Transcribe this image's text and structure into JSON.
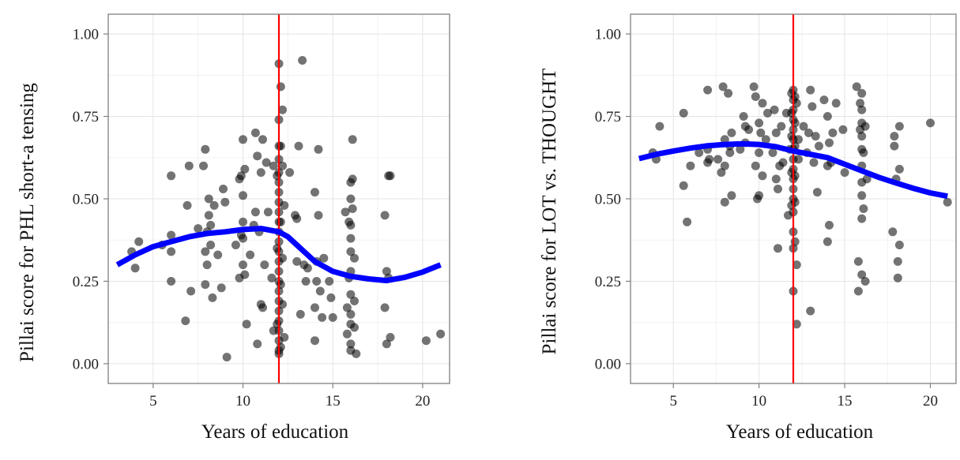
{
  "chart_data": [
    {
      "type": "scatter",
      "xlabel": "Years of education",
      "ylabel": "Pillai score for PHL short-a tensing",
      "xlim": [
        2.5,
        21.5
      ],
      "ylim": [
        -0.06,
        1.06
      ],
      "xticks": [
        "5",
        "10",
        "15",
        "20"
      ],
      "yticks": [
        "0.00",
        "0.25",
        "0.50",
        "0.75",
        "1.00"
      ],
      "grid": true,
      "vline": 12,
      "colors": {
        "points": "#000000",
        "smooth": "#0000ff",
        "vline": "#ff0000"
      },
      "points": [
        [
          3.8,
          0.34
        ],
        [
          4.0,
          0.29
        ],
        [
          4.2,
          0.37
        ],
        [
          5.5,
          0.36
        ],
        [
          6.0,
          0.57
        ],
        [
          6.0,
          0.34
        ],
        [
          6.0,
          0.25
        ],
        [
          6.0,
          0.39
        ],
        [
          6.8,
          0.13
        ],
        [
          6.9,
          0.48
        ],
        [
          7.0,
          0.6
        ],
        [
          7.1,
          0.22
        ],
        [
          7.5,
          0.41
        ],
        [
          7.8,
          0.6
        ],
        [
          7.9,
          0.65
        ],
        [
          7.9,
          0.34
        ],
        [
          7.9,
          0.24
        ],
        [
          8.0,
          0.3
        ],
        [
          8.0,
          0.4
        ],
        [
          8.1,
          0.45
        ],
        [
          8.1,
          0.5
        ],
        [
          8.2,
          0.42
        ],
        [
          8.2,
          0.36
        ],
        [
          8.3,
          0.2
        ],
        [
          8.4,
          0.48
        ],
        [
          8.6,
          0.33
        ],
        [
          8.8,
          0.23
        ],
        [
          8.9,
          0.53
        ],
        [
          9.0,
          0.49
        ],
        [
          9.1,
          0.02
        ],
        [
          9.6,
          0.36
        ],
        [
          9.8,
          0.26
        ],
        [
          9.8,
          0.56
        ],
        [
          9.9,
          0.57
        ],
        [
          9.9,
          0.39
        ],
        [
          10.0,
          0.43
        ],
        [
          10.0,
          0.38
        ],
        [
          10.0,
          0.3
        ],
        [
          10.0,
          0.51
        ],
        [
          10.0,
          0.68
        ],
        [
          10.1,
          0.27
        ],
        [
          10.1,
          0.59
        ],
        [
          10.2,
          0.12
        ],
        [
          10.4,
          0.33
        ],
        [
          10.6,
          0.42
        ],
        [
          10.7,
          0.7
        ],
        [
          10.7,
          0.46
        ],
        [
          10.8,
          0.63
        ],
        [
          10.8,
          0.06
        ],
        [
          10.9,
          0.4
        ],
        [
          11.0,
          0.58
        ],
        [
          11.0,
          0.18
        ],
        [
          11.1,
          0.17
        ],
        [
          11.1,
          0.68
        ],
        [
          11.2,
          0.3
        ],
        [
          11.3,
          0.61
        ],
        [
          11.4,
          0.46
        ],
        [
          11.6,
          0.26
        ],
        [
          11.7,
          0.1
        ],
        [
          11.7,
          0.6
        ],
        [
          12.0,
          0.91
        ],
        [
          12.0,
          0.74
        ],
        [
          12.0,
          0.66
        ],
        [
          12.0,
          0.62
        ],
        [
          12.0,
          0.58
        ],
        [
          12.0,
          0.55
        ],
        [
          12.0,
          0.52
        ],
        [
          12.0,
          0.49
        ],
        [
          12.0,
          0.46
        ],
        [
          12.0,
          0.43
        ],
        [
          12.0,
          0.4
        ],
        [
          12.0,
          0.37
        ],
        [
          12.0,
          0.34
        ],
        [
          12.0,
          0.31
        ],
        [
          12.0,
          0.28
        ],
        [
          12.0,
          0.25
        ],
        [
          12.0,
          0.22
        ],
        [
          12.0,
          0.19
        ],
        [
          12.0,
          0.16
        ],
        [
          12.0,
          0.13
        ],
        [
          12.0,
          0.1
        ],
        [
          12.0,
          0.07
        ],
        [
          12.0,
          0.04
        ],
        [
          12.0,
          0.03
        ],
        [
          11.9,
          0.57
        ],
        [
          11.9,
          0.35
        ],
        [
          11.9,
          0.12
        ],
        [
          12.1,
          0.84
        ],
        [
          12.1,
          0.66
        ],
        [
          12.1,
          0.43
        ],
        [
          12.1,
          0.24
        ],
        [
          12.1,
          0.05
        ],
        [
          12.2,
          0.77
        ],
        [
          12.2,
          0.6
        ],
        [
          12.2,
          0.32
        ],
        [
          12.2,
          0.18
        ],
        [
          12.3,
          0.48
        ],
        [
          12.3,
          0.08
        ],
        [
          12.6,
          0.58
        ],
        [
          12.9,
          0.45
        ],
        [
          13.0,
          0.44
        ],
        [
          13.0,
          0.31
        ],
        [
          13.1,
          0.66
        ],
        [
          13.2,
          0.15
        ],
        [
          13.3,
          0.92
        ],
        [
          13.4,
          0.3
        ],
        [
          13.5,
          0.25
        ],
        [
          13.6,
          0.29
        ],
        [
          14.0,
          0.52
        ],
        [
          14.0,
          0.17
        ],
        [
          14.0,
          0.07
        ],
        [
          14.1,
          0.31
        ],
        [
          14.1,
          0.25
        ],
        [
          14.2,
          0.65
        ],
        [
          14.2,
          0.45
        ],
        [
          14.3,
          0.22
        ],
        [
          14.4,
          0.14
        ],
        [
          14.5,
          0.32
        ],
        [
          14.8,
          0.25
        ],
        [
          14.9,
          0.2
        ],
        [
          15.0,
          0.14
        ],
        [
          15.7,
          0.46
        ],
        [
          15.8,
          0.17
        ],
        [
          15.8,
          0.09
        ],
        [
          15.9,
          0.26
        ],
        [
          15.9,
          0.43
        ],
        [
          16.0,
          0.55
        ],
        [
          16.0,
          0.5
        ],
        [
          16.0,
          0.42
        ],
        [
          16.0,
          0.38
        ],
        [
          16.0,
          0.34
        ],
        [
          16.0,
          0.28
        ],
        [
          16.0,
          0.21
        ],
        [
          16.0,
          0.15
        ],
        [
          16.0,
          0.12
        ],
        [
          16.0,
          0.06
        ],
        [
          16.0,
          0.04
        ],
        [
          16.1,
          0.68
        ],
        [
          16.1,
          0.56
        ],
        [
          16.1,
          0.47
        ],
        [
          16.2,
          0.32
        ],
        [
          16.2,
          0.19
        ],
        [
          16.2,
          0.11
        ],
        [
          16.3,
          0.03
        ],
        [
          17.9,
          0.45
        ],
        [
          17.9,
          0.17
        ],
        [
          18.0,
          0.06
        ],
        [
          18.0,
          0.28
        ],
        [
          18.1,
          0.26
        ],
        [
          18.1,
          0.57
        ],
        [
          18.2,
          0.08
        ],
        [
          18.2,
          0.57
        ],
        [
          20.2,
          0.07
        ],
        [
          21.0,
          0.09
        ]
      ],
      "smooth": [
        [
          3,
          0.3
        ],
        [
          4,
          0.33
        ],
        [
          5,
          0.355
        ],
        [
          6,
          0.37
        ],
        [
          7,
          0.385
        ],
        [
          8,
          0.395
        ],
        [
          9,
          0.4
        ],
        [
          10,
          0.407
        ],
        [
          11,
          0.41
        ],
        [
          12,
          0.4
        ],
        [
          12.5,
          0.385
        ],
        [
          13,
          0.36
        ],
        [
          14,
          0.31
        ],
        [
          15,
          0.28
        ],
        [
          16,
          0.265
        ],
        [
          17,
          0.257
        ],
        [
          18,
          0.252
        ],
        [
          19,
          0.262
        ],
        [
          20,
          0.278
        ],
        [
          21,
          0.3
        ]
      ]
    },
    {
      "type": "scatter",
      "xlabel": "Years of education",
      "ylabel": "Pillai score for LOT vs. THOUGHT",
      "xlim": [
        2.5,
        21.5
      ],
      "ylim": [
        -0.06,
        1.06
      ],
      "xticks": [
        "5",
        "10",
        "15",
        "20"
      ],
      "yticks": [
        "0.00",
        "0.25",
        "0.50",
        "0.75",
        "1.00"
      ],
      "grid": true,
      "vline": 12,
      "colors": {
        "points": "#000000",
        "smooth": "#0000ff",
        "vline": "#ff0000"
      },
      "points": [
        [
          3.8,
          0.64
        ],
        [
          4.0,
          0.62
        ],
        [
          4.2,
          0.72
        ],
        [
          5.6,
          0.76
        ],
        [
          5.6,
          0.54
        ],
        [
          5.8,
          0.43
        ],
        [
          6.0,
          0.6
        ],
        [
          6.5,
          0.64
        ],
        [
          7.0,
          0.61
        ],
        [
          7.0,
          0.65
        ],
        [
          7.0,
          0.83
        ],
        [
          7.1,
          0.62
        ],
        [
          7.6,
          0.62
        ],
        [
          7.8,
          0.58
        ],
        [
          7.9,
          0.84
        ],
        [
          8.0,
          0.49
        ],
        [
          8.0,
          0.68
        ],
        [
          8.0,
          0.6
        ],
        [
          8.2,
          0.82
        ],
        [
          8.3,
          0.64
        ],
        [
          8.3,
          0.66
        ],
        [
          8.4,
          0.7
        ],
        [
          8.4,
          0.51
        ],
        [
          8.9,
          0.65
        ],
        [
          9.1,
          0.75
        ],
        [
          9.2,
          0.72
        ],
        [
          9.2,
          0.67
        ],
        [
          9.4,
          0.71
        ],
        [
          9.7,
          0.84
        ],
        [
          9.8,
          0.81
        ],
        [
          9.8,
          0.6
        ],
        [
          9.9,
          0.5
        ],
        [
          10.0,
          0.51
        ],
        [
          10.0,
          0.64
        ],
        [
          10.0,
          0.73
        ],
        [
          10.1,
          0.7
        ],
        [
          10.2,
          0.79
        ],
        [
          10.2,
          0.57
        ],
        [
          10.4,
          0.68
        ],
        [
          10.5,
          0.76
        ],
        [
          10.8,
          0.64
        ],
        [
          10.9,
          0.77
        ],
        [
          11.0,
          0.7
        ],
        [
          11.0,
          0.56
        ],
        [
          11.1,
          0.53
        ],
        [
          11.1,
          0.35
        ],
        [
          11.2,
          0.6
        ],
        [
          11.3,
          0.72
        ],
        [
          11.4,
          0.61
        ],
        [
          11.6,
          0.76
        ],
        [
          11.7,
          0.45
        ],
        [
          11.8,
          0.65
        ],
        [
          12.0,
          0.83
        ],
        [
          12.0,
          0.8
        ],
        [
          12.0,
          0.77
        ],
        [
          12.0,
          0.74
        ],
        [
          12.0,
          0.71
        ],
        [
          12.0,
          0.68
        ],
        [
          12.0,
          0.65
        ],
        [
          12.0,
          0.62
        ],
        [
          12.0,
          0.59
        ],
        [
          12.0,
          0.56
        ],
        [
          12.0,
          0.53
        ],
        [
          12.0,
          0.5
        ],
        [
          12.0,
          0.46
        ],
        [
          12.0,
          0.4
        ],
        [
          12.0,
          0.35
        ],
        [
          12.0,
          0.22
        ],
        [
          11.9,
          0.82
        ],
        [
          11.9,
          0.76
        ],
        [
          11.9,
          0.69
        ],
        [
          11.9,
          0.58
        ],
        [
          11.9,
          0.48
        ],
        [
          12.1,
          0.81
        ],
        [
          12.1,
          0.73
        ],
        [
          12.1,
          0.66
        ],
        [
          12.1,
          0.57
        ],
        [
          12.1,
          0.49
        ],
        [
          12.1,
          0.37
        ],
        [
          12.2,
          0.12
        ],
        [
          12.2,
          0.3
        ],
        [
          12.2,
          0.79
        ],
        [
          12.3,
          0.62
        ],
        [
          12.3,
          0.68
        ],
        [
          12.6,
          0.72
        ],
        [
          12.8,
          0.64
        ],
        [
          12.9,
          0.7
        ],
        [
          13.0,
          0.16
        ],
        [
          13.0,
          0.83
        ],
        [
          13.1,
          0.78
        ],
        [
          13.2,
          0.61
        ],
        [
          13.3,
          0.69
        ],
        [
          13.4,
          0.52
        ],
        [
          13.5,
          0.66
        ],
        [
          13.8,
          0.8
        ],
        [
          14.0,
          0.75
        ],
        [
          14.0,
          0.37
        ],
        [
          14.0,
          0.6
        ],
        [
          14.1,
          0.42
        ],
        [
          14.1,
          0.67
        ],
        [
          14.2,
          0.61
        ],
        [
          14.3,
          0.7
        ],
        [
          14.5,
          0.79
        ],
        [
          14.9,
          0.71
        ],
        [
          15.0,
          0.58
        ],
        [
          15.7,
          0.84
        ],
        [
          15.8,
          0.31
        ],
        [
          15.8,
          0.22
        ],
        [
          15.9,
          0.79
        ],
        [
          15.9,
          0.71
        ],
        [
          16.0,
          0.82
        ],
        [
          16.0,
          0.77
        ],
        [
          16.0,
          0.73
        ],
        [
          16.0,
          0.69
        ],
        [
          16.0,
          0.65
        ],
        [
          16.0,
          0.6
        ],
        [
          16.0,
          0.55
        ],
        [
          16.0,
          0.51
        ],
        [
          16.0,
          0.44
        ],
        [
          16.0,
          0.27
        ],
        [
          16.1,
          0.64
        ],
        [
          16.1,
          0.47
        ],
        [
          16.2,
          0.25
        ],
        [
          16.2,
          0.72
        ],
        [
          16.3,
          0.56
        ],
        [
          17.8,
          0.4
        ],
        [
          17.9,
          0.66
        ],
        [
          17.9,
          0.69
        ],
        [
          18.0,
          0.56
        ],
        [
          18.1,
          0.26
        ],
        [
          18.1,
          0.31
        ],
        [
          18.2,
          0.36
        ],
        [
          18.2,
          0.59
        ],
        [
          18.2,
          0.72
        ],
        [
          20.0,
          0.73
        ],
        [
          21.0,
          0.49
        ]
      ],
      "smooth": [
        [
          3,
          0.622
        ],
        [
          4,
          0.635
        ],
        [
          5,
          0.645
        ],
        [
          6,
          0.654
        ],
        [
          7,
          0.661
        ],
        [
          8,
          0.665
        ],
        [
          9,
          0.667
        ],
        [
          10,
          0.665
        ],
        [
          11,
          0.658
        ],
        [
          12,
          0.645
        ],
        [
          13,
          0.635
        ],
        [
          14,
          0.625
        ],
        [
          15,
          0.605
        ],
        [
          16,
          0.585
        ],
        [
          17,
          0.565
        ],
        [
          18,
          0.548
        ],
        [
          19,
          0.532
        ],
        [
          20,
          0.518
        ],
        [
          21,
          0.508
        ]
      ]
    }
  ]
}
